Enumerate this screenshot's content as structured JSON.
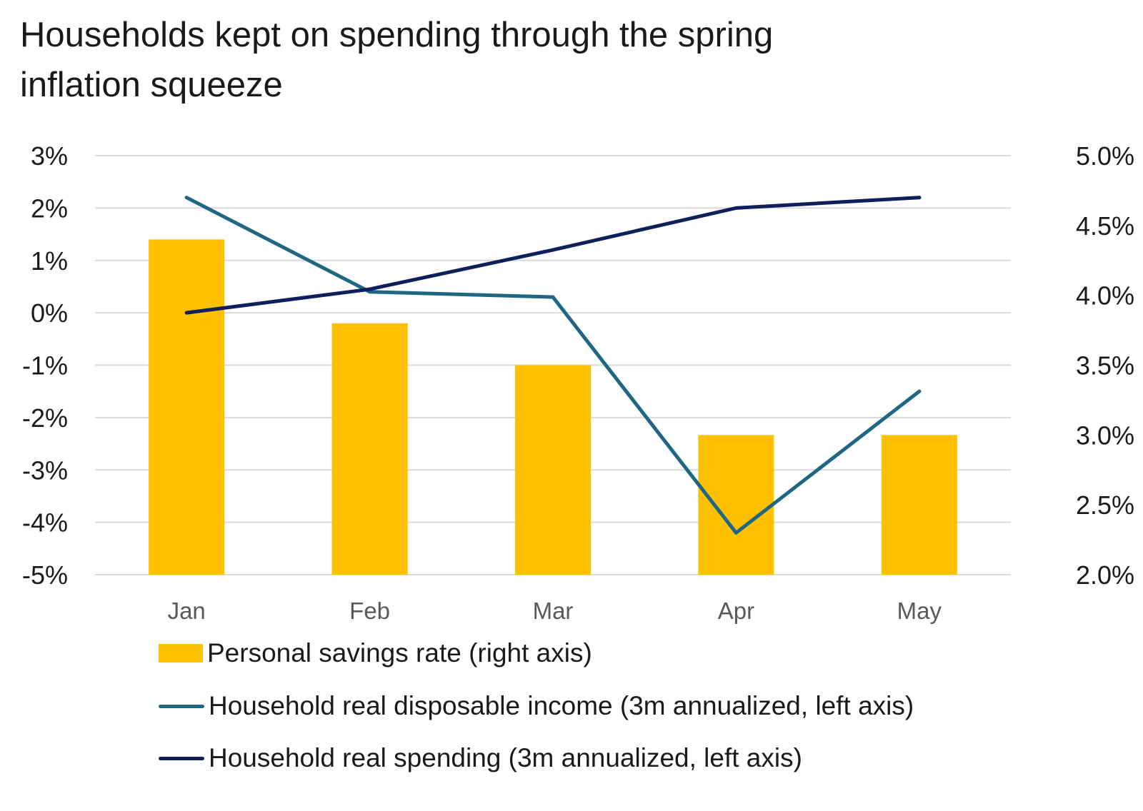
{
  "chart_data": {
    "type": "bar",
    "title": "Households kept on spending through the spring inflation squeeze",
    "categories": [
      "Jan",
      "Feb",
      "Mar",
      "Apr",
      "May"
    ],
    "y_left": {
      "min": -5,
      "max": 3,
      "step": 1,
      "tick_labels": [
        "3%",
        "2%",
        "1%",
        "0%",
        "-1%",
        "-2%",
        "-3%",
        "-4%",
        "-5%"
      ]
    },
    "y_right": {
      "min": 2.0,
      "max": 5.0,
      "step": 0.5,
      "tick_labels": [
        "5.0%",
        "4.5%",
        "4.0%",
        "3.5%",
        "3.0%",
        "2.5%",
        "2.0%"
      ]
    },
    "grid": true,
    "legend_position": "bottom",
    "series": [
      {
        "name": "Personal savings rate (right axis)",
        "type": "bar",
        "axis": "right",
        "color": "#FFC000",
        "values": [
          4.4,
          3.8,
          3.5,
          3.0,
          3.0
        ]
      },
      {
        "name": "Household real disposable income (3m annualized, left axis)",
        "type": "line",
        "axis": "left",
        "color": "#1F6584",
        "values": [
          2.2,
          0.4,
          0.3,
          -4.2,
          -1.5
        ]
      },
      {
        "name": "Household real spending (3m annualized, left axis)",
        "type": "line",
        "axis": "left",
        "color": "#0E1F5B",
        "values": [
          0.0,
          0.45,
          1.2,
          2.0,
          2.2
        ]
      }
    ]
  }
}
